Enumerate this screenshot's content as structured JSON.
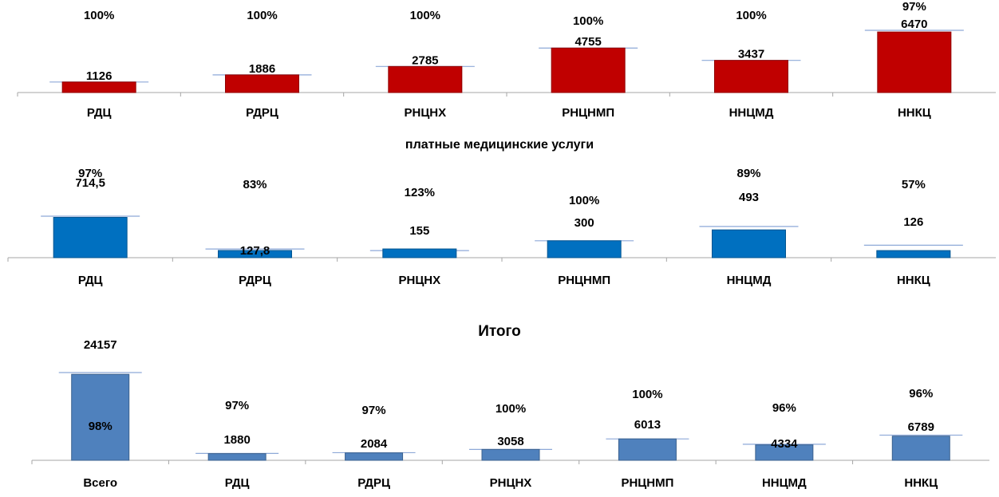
{
  "chart_data": [
    {
      "type": "bar",
      "title": "",
      "categories": [
        "РДЦ",
        "РДРЦ",
        "РНЦНХ",
        "РНЦНМП",
        "ННЦМД",
        "ННКЦ"
      ],
      "values": [
        1126,
        1886,
        2785,
        4755,
        3437,
        6470
      ],
      "value_labels": [
        "1126",
        "1886",
        "2785",
        "4755",
        "3437",
        "6470"
      ],
      "target_values": [
        1126,
        1886,
        2785,
        4755,
        3437,
        6650
      ],
      "percent_labels": [
        "100%",
        "100%",
        "100%",
        "100%",
        "100%",
        "97%"
      ],
      "ylim": [
        0,
        7500
      ],
      "color": "#c00000",
      "grid": false
    },
    {
      "type": "bar",
      "title": "платные медицинские услуги",
      "categories": [
        "РДЦ",
        "РДРЦ",
        "РНЦНХ",
        "РНЦНМП",
        "ННЦМД",
        "ННКЦ"
      ],
      "values": [
        714.5,
        127.8,
        155,
        300,
        493,
        126
      ],
      "value_labels": [
        "714,5",
        "127,8",
        "155",
        "300",
        "493",
        "126"
      ],
      "target_values": [
        736,
        154,
        126,
        300,
        554,
        221
      ],
      "percent_labels": [
        "97%",
        "83%",
        "123%",
        "100%",
        "89%",
        "57%"
      ],
      "ylim": [
        0,
        1300
      ],
      "color": "#0070c0",
      "grid": false
    },
    {
      "type": "bar",
      "title": "Итого",
      "categories": [
        "Всего",
        "РДЦ",
        "РДРЦ",
        "РНЦНХ",
        "РНЦНМП",
        "ННЦМД",
        "ННКЦ"
      ],
      "values": [
        24157,
        1880,
        2084,
        3058,
        6013,
        4334,
        6789
      ],
      "value_labels": [
        "24157",
        "1880",
        "2084",
        "3058",
        "6013",
        "4334",
        "6789"
      ],
      "target_values": [
        24650,
        1938,
        2148,
        3058,
        6013,
        4515,
        7072
      ],
      "percent_labels": [
        "98%",
        "97%",
        "97%",
        "100%",
        "100%",
        "96%",
        "96%"
      ],
      "ylim": [
        0,
        27000
      ],
      "color": "#4f81bd",
      "grid": false
    }
  ]
}
